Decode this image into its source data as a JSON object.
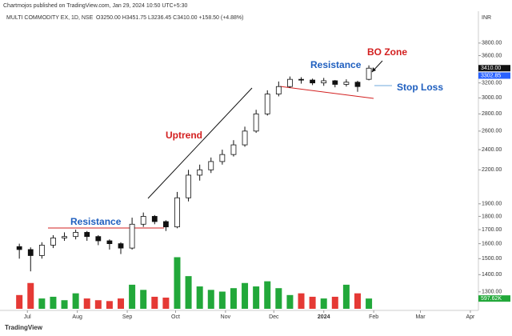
{
  "chart_data": {
    "type": "candlestick",
    "attribution": "Chartmojos published on TradingView.com, Jan 29, 2024 10:50 UTC+5:30",
    "title": "MULTI COMMODITY EX, 1D, NSE",
    "ohlc_text": "O3250.00  H3451.75  L3236.45  C3410.00  +158.50 (+4.88%)",
    "currency": "INR",
    "brand": "TradingView",
    "annotations": [
      "Resistance",
      "Uptrend",
      "Resistance",
      "BO Zone",
      "Stop Loss"
    ],
    "x": [
      -5,
      2,
      9,
      16,
      23,
      30,
      37,
      44,
      51,
      58,
      65,
      72,
      79,
      86,
      93,
      100,
      107,
      114,
      121,
      128,
      135,
      142,
      149,
      156,
      163,
      170,
      177,
      184,
      191,
      198,
      205,
      212
    ],
    "open": [
      1580,
      1560,
      1520,
      1590,
      1640,
      1650,
      1680,
      1650,
      1620,
      1600,
      1570,
      1740,
      1800,
      1760,
      1720,
      1950,
      2150,
      2200,
      2280,
      2350,
      2450,
      2600,
      2800,
      3050,
      3150,
      3250,
      3240,
      3200,
      3230,
      3180,
      3210,
      3250
    ],
    "high": [
      1600,
      1575,
      1610,
      1660,
      1680,
      1700,
      1690,
      1660,
      1630,
      1610,
      1790,
      1830,
      1810,
      1770,
      2000,
      2200,
      2250,
      2320,
      2400,
      2500,
      2650,
      2850,
      3100,
      3220,
      3290,
      3280,
      3260,
      3270,
      3240,
      3250,
      3230,
      3451.75
    ],
    "low": [
      1500,
      1420,
      1500,
      1570,
      1620,
      1630,
      1620,
      1590,
      1560,
      1530,
      1560,
      1720,
      1740,
      1690,
      1710,
      1920,
      2100,
      2170,
      2250,
      2330,
      2430,
      2580,
      2780,
      3020,
      3130,
      3190,
      3170,
      3160,
      3140,
      3150,
      3080,
      3236.45
    ],
    "close": [
      1560,
      1520,
      1590,
      1640,
      1650,
      1680,
      1650,
      1620,
      1600,
      1570,
      1740,
      1800,
      1760,
      1720,
      1950,
      2150,
      2200,
      2280,
      2350,
      2450,
      2600,
      2800,
      3050,
      3150,
      3250,
      3240,
      3200,
      3230,
      3180,
      3210,
      3150,
      3410
    ],
    "volume": [
      800,
      1500,
      600,
      700,
      500,
      900,
      600,
      500,
      450,
      600,
      1400,
      1100,
      700,
      650,
      3000,
      1900,
      1300,
      1100,
      1000,
      1200,
      1500,
      1300,
      1600,
      1200,
      800,
      900,
      700,
      600,
      700,
      1400,
      900,
      597.62
    ],
    "volume_tag": {
      "value": 597.62,
      "label": "597.62K"
    },
    "vlim": [
      0,
      4000
    ],
    "up_color": "#22a83a",
    "down_color": "#e53935",
    "log_scale": true,
    "xlim": [
      -17,
      280
    ],
    "xticks": [
      {
        "value": 0,
        "label": "Jul"
      },
      {
        "value": 31,
        "label": "Aug"
      },
      {
        "value": 62,
        "label": "Sep"
      },
      {
        "value": 92,
        "label": "Oct"
      },
      {
        "value": 123,
        "label": "Nov"
      },
      {
        "value": 153,
        "label": "Dec"
      },
      {
        "value": 184,
        "label": "2024"
      },
      {
        "value": 215,
        "label": "Feb"
      },
      {
        "value": 244,
        "label": "Mar"
      },
      {
        "value": 275,
        "label": "Apr"
      }
    ],
    "ylim": [
      1200,
      4300
    ],
    "yticks": [
      {
        "value": 3800,
        "label": "3800.00"
      },
      {
        "value": 3600,
        "label": "3600.00"
      },
      {
        "value": 3200,
        "label": "3200.00"
      },
      {
        "value": 3000,
        "label": "3000.00"
      },
      {
        "value": 2800,
        "label": "2800.00"
      },
      {
        "value": 2600,
        "label": "2600.00"
      },
      {
        "value": 2400,
        "label": "2400.00"
      },
      {
        "value": 2200,
        "label": "2200.00"
      },
      {
        "value": 1900,
        "label": "1900.00"
      },
      {
        "value": 1800,
        "label": "1800.00"
      },
      {
        "value": 1700,
        "label": "1700.00"
      },
      {
        "value": 1600,
        "label": "1600.00"
      },
      {
        "value": 1500,
        "label": "1500.00"
      },
      {
        "value": 1400,
        "label": "1400.00"
      },
      {
        "value": 1300,
        "label": "1300.00"
      }
    ],
    "price_tags": [
      {
        "value": 3410,
        "label": "3410.00"
      },
      {
        "value": 3302.85,
        "label": "3302.85"
      }
    ]
  }
}
